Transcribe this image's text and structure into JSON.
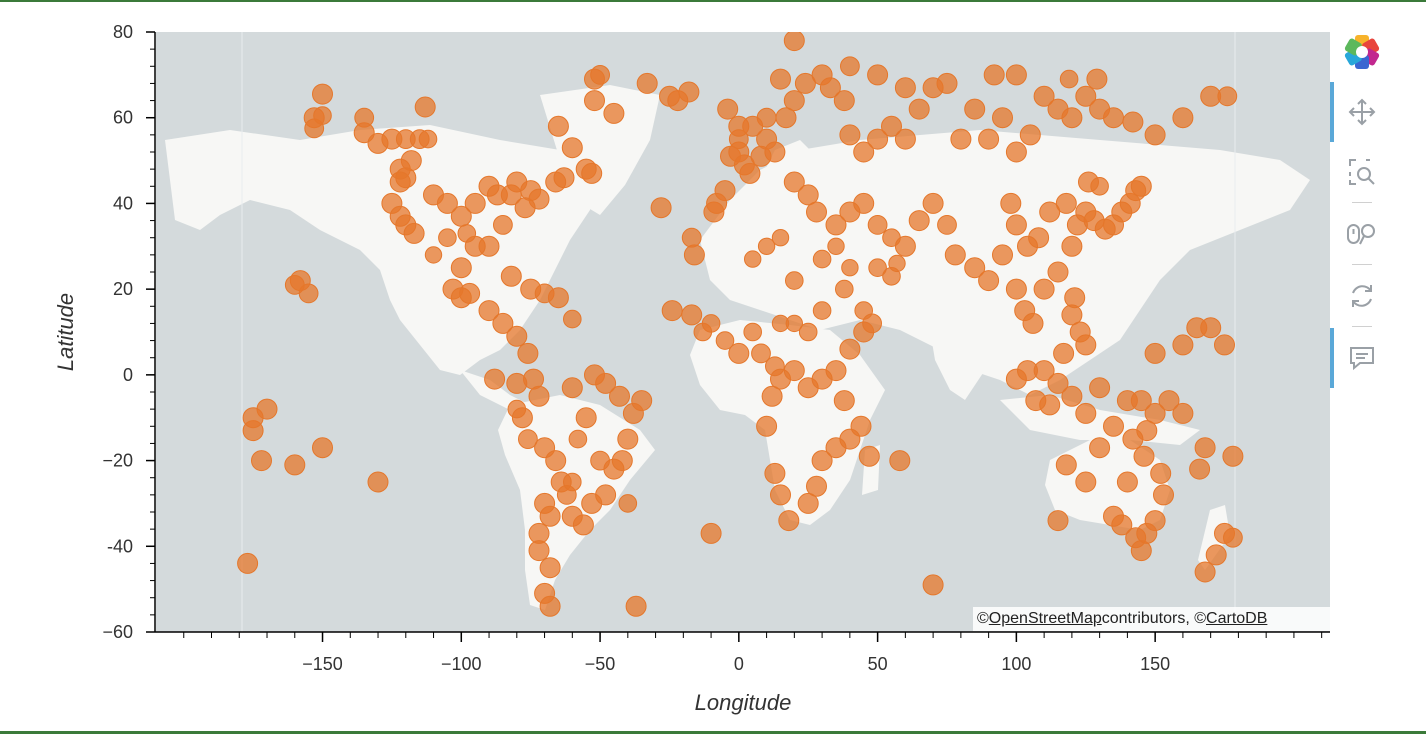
{
  "chart_data": {
    "type": "scatter",
    "xlabel": "Longitude",
    "ylabel": "Latitude",
    "xlim": [
      -210,
      213
    ],
    "ylim": [
      -60,
      80
    ],
    "x_ticks": [
      -150,
      -100,
      -50,
      0,
      50,
      100,
      150
    ],
    "y_ticks": [
      80,
      60,
      40,
      20,
      0,
      -20,
      -40,
      -60
    ],
    "x_tick_labels": [
      "−150",
      "−100",
      "−50",
      "0",
      "50",
      "100",
      "150"
    ],
    "y_tick_labels": [
      "80",
      "60",
      "40",
      "20",
      "0",
      "−20",
      "-40",
      "−60"
    ],
    "marker_color": "#e5772b",
    "points": [
      [
        -150,
        65.5,
        1.0
      ],
      [
        -153,
        60,
        1.0
      ],
      [
        -153,
        57.5,
        0.9
      ],
      [
        -113,
        62.5,
        1.0
      ],
      [
        -135,
        60,
        0.9
      ],
      [
        -135,
        56.5,
        1.0
      ],
      [
        -130,
        54,
        1.0
      ],
      [
        -125,
        55,
        1.0
      ],
      [
        -120,
        55,
        0.9
      ],
      [
        -115,
        55,
        0.9
      ],
      [
        -112,
        55,
        0.8
      ],
      [
        -118,
        50,
        1.0
      ],
      [
        -122,
        48,
        1.0
      ],
      [
        -120,
        46,
        1.0
      ],
      [
        -122,
        45,
        1.0
      ],
      [
        -125,
        40,
        1.0
      ],
      [
        -122,
        37,
        1.0
      ],
      [
        -120,
        35,
        1.0
      ],
      [
        -117,
        33,
        1.0
      ],
      [
        -110,
        42,
        1.0
      ],
      [
        -105,
        40,
        1.0
      ],
      [
        -100,
        37,
        1.0
      ],
      [
        -95,
        40,
        1.0
      ],
      [
        -90,
        44,
        1.0
      ],
      [
        -87,
        42,
        1.0
      ],
      [
        -82,
        42,
        1.0
      ],
      [
        -80,
        45,
        1.0
      ],
      [
        -75,
        43,
        1.0
      ],
      [
        -72,
        41,
        1.0
      ],
      [
        -77,
        39,
        1.0
      ],
      [
        -85,
        35,
        0.9
      ],
      [
        -90,
        30,
        1.0
      ],
      [
        -95,
        30,
        1.0
      ],
      [
        -98,
        33,
        0.8
      ],
      [
        -105,
        32,
        0.8
      ],
      [
        -110,
        28,
        0.7
      ],
      [
        -100,
        25,
        1.0
      ],
      [
        -103,
        20,
        1.0
      ],
      [
        -100,
        18,
        1.0
      ],
      [
        -97,
        19,
        1.0
      ],
      [
        -90,
        15,
        1.0
      ],
      [
        -85,
        12,
        1.0
      ],
      [
        -80,
        9,
        1.0
      ],
      [
        -75,
        20,
        1.0
      ],
      [
        -70,
        19,
        0.9
      ],
      [
        -65,
        18,
        1.0
      ],
      [
        -60,
        13,
        0.8
      ],
      [
        -82,
        23,
        1.0
      ],
      [
        -76,
        5,
        1.0
      ],
      [
        -74,
        -1,
        1.0
      ],
      [
        -72,
        -5,
        1.0
      ],
      [
        -78,
        -10,
        1.0
      ],
      [
        -76,
        -15,
        0.9
      ],
      [
        -70,
        -17,
        1.0
      ],
      [
        -66,
        -20,
        1.0
      ],
      [
        -64,
        -25,
        1.0
      ],
      [
        -62,
        -28,
        0.9
      ],
      [
        -70,
        -30,
        1.0
      ],
      [
        -68,
        -33,
        1.0
      ],
      [
        -72,
        -37,
        1.0
      ],
      [
        -72,
        -41,
        1.0
      ],
      [
        -68,
        -45,
        1.0
      ],
      [
        -70,
        -51,
        1.0
      ],
      [
        -68,
        -54,
        1.0
      ],
      [
        -60,
        -33,
        1.0
      ],
      [
        -56,
        -35,
        1.0
      ],
      [
        -53,
        -30,
        1.0
      ],
      [
        -48,
        -28,
        1.0
      ],
      [
        -45,
        -22,
        1.0
      ],
      [
        -42,
        -20,
        1.0
      ],
      [
        -40,
        -15,
        1.0
      ],
      [
        -38,
        -9,
        1.0
      ],
      [
        -35,
        -6,
        1.0
      ],
      [
        -43,
        -5,
        1.0
      ],
      [
        -48,
        -2,
        1.0
      ],
      [
        -52,
        0,
        1.0
      ],
      [
        -60,
        -3,
        1.0
      ],
      [
        -55,
        -10,
        1.0
      ],
      [
        -50,
        -20,
        0.9
      ],
      [
        -58,
        -15,
        0.8
      ],
      [
        -60,
        -25,
        0.8
      ],
      [
        -37,
        -54,
        1.0
      ],
      [
        -28,
        39,
        1.0
      ],
      [
        -17,
        32,
        0.9
      ],
      [
        -16,
        28,
        1.0
      ],
      [
        -24,
        15,
        1.0
      ],
      [
        -17,
        14,
        1.0
      ],
      [
        -13,
        10,
        0.8
      ],
      [
        -10,
        -37,
        1.0
      ],
      [
        -5,
        43,
        1.0
      ],
      [
        -9,
        38,
        1.0
      ],
      [
        -8,
        40,
        1.0
      ],
      [
        -3,
        51,
        1.0
      ],
      [
        0,
        52,
        1.0
      ],
      [
        2,
        49,
        1.0
      ],
      [
        4,
        47,
        1.0
      ],
      [
        8,
        51,
        1.0
      ],
      [
        10,
        55,
        1.0
      ],
      [
        13,
        52,
        1.0
      ],
      [
        17,
        60,
        1.0
      ],
      [
        20,
        64,
        1.0
      ],
      [
        24,
        68,
        1.0
      ],
      [
        30,
        70,
        1.0
      ],
      [
        33,
        67,
        1.0
      ],
      [
        38,
        64,
        1.0
      ],
      [
        40,
        56,
        1.0
      ],
      [
        45,
        52,
        1.0
      ],
      [
        50,
        55,
        1.0
      ],
      [
        55,
        58,
        1.0
      ],
      [
        60,
        55,
        1.0
      ],
      [
        60,
        67,
        1.0
      ],
      [
        65,
        62,
        1.0
      ],
      [
        70,
        67,
        1.0
      ],
      [
        80,
        55,
        1.0
      ],
      [
        85,
        62,
        1.0
      ],
      [
        90,
        55,
        1.0
      ],
      [
        95,
        60,
        1.0
      ],
      [
        100,
        52,
        1.0
      ],
      [
        105,
        56,
        1.0
      ],
      [
        110,
        65,
        1.0
      ],
      [
        115,
        62,
        1.0
      ],
      [
        120,
        60,
        1.0
      ],
      [
        125,
        65,
        1.0
      ],
      [
        130,
        62,
        1.0
      ],
      [
        135,
        60,
        1.0
      ],
      [
        142,
        59,
        1.0
      ],
      [
        150,
        56,
        1.0
      ],
      [
        160,
        60,
        1.0
      ],
      [
        170,
        65,
        1.0
      ],
      [
        176,
        65,
        0.9
      ],
      [
        129,
        69,
        1.0
      ],
      [
        119,
        69,
        0.8
      ],
      [
        100,
        70,
        1.0
      ],
      [
        92,
        70,
        1.0
      ],
      [
        75,
        68,
        1.0
      ],
      [
        50,
        70,
        1.0
      ],
      [
        40,
        72,
        0.9
      ],
      [
        20,
        78,
        1.0
      ],
      [
        15,
        69,
        1.0
      ],
      [
        10,
        60,
        0.9
      ],
      [
        5,
        58,
        1.0
      ],
      [
        0,
        55,
        0.9
      ],
      [
        20,
        45,
        1.0
      ],
      [
        25,
        42,
        1.0
      ],
      [
        28,
        38,
        1.0
      ],
      [
        35,
        35,
        1.0
      ],
      [
        40,
        38,
        1.0
      ],
      [
        45,
        40,
        1.0
      ],
      [
        50,
        35,
        0.9
      ],
      [
        55,
        32,
        0.8
      ],
      [
        60,
        30,
        1.0
      ],
      [
        65,
        36,
        1.0
      ],
      [
        70,
        40,
        1.0
      ],
      [
        75,
        35,
        0.9
      ],
      [
        78,
        28,
        1.0
      ],
      [
        85,
        25,
        1.0
      ],
      [
        90,
        22,
        1.0
      ],
      [
        95,
        28,
        1.0
      ],
      [
        100,
        20,
        1.0
      ],
      [
        103,
        15,
        1.0
      ],
      [
        106,
        12,
        1.0
      ],
      [
        110,
        20,
        1.0
      ],
      [
        115,
        24,
        1.0
      ],
      [
        120,
        30,
        1.0
      ],
      [
        122,
        35,
        1.0
      ],
      [
        125,
        38,
        1.0
      ],
      [
        128,
        36,
        1.0
      ],
      [
        132,
        34,
        1.0
      ],
      [
        135,
        35,
        1.0
      ],
      [
        138,
        38,
        1.0
      ],
      [
        141,
        40,
        1.0
      ],
      [
        143,
        43,
        1.0
      ],
      [
        145,
        44,
        1.0
      ],
      [
        130,
        44,
        0.8
      ],
      [
        126,
        45,
        1.0
      ],
      [
        118,
        40,
        1.0
      ],
      [
        112,
        38,
        1.0
      ],
      [
        108,
        32,
        1.0
      ],
      [
        104,
        30,
        1.0
      ],
      [
        100,
        35,
        1.0
      ],
      [
        98,
        40,
        1.0
      ],
      [
        120,
        14,
        1.0
      ],
      [
        123,
        10,
        1.0
      ],
      [
        125,
        7,
        1.0
      ],
      [
        121,
        18,
        1.0
      ],
      [
        117,
        5,
        1.0
      ],
      [
        112,
        -7,
        1.0
      ],
      [
        107,
        -6,
        1.0
      ],
      [
        100,
        -1,
        1.0
      ],
      [
        104,
        1,
        1.0
      ],
      [
        110,
        1,
        1.0
      ],
      [
        115,
        -2,
        1.0
      ],
      [
        120,
        -5,
        1.0
      ],
      [
        125,
        -9,
        1.0
      ],
      [
        130,
        -3,
        1.0
      ],
      [
        140,
        -6,
        1.0
      ],
      [
        145,
        -6,
        1.0
      ],
      [
        150,
        -9,
        1.0
      ],
      [
        147,
        -13,
        1.0
      ],
      [
        142,
        -15,
        1.0
      ],
      [
        135,
        -12,
        1.0
      ],
      [
        130,
        -17,
        1.0
      ],
      [
        125,
        -25,
        1.0
      ],
      [
        118,
        -21,
        1.0
      ],
      [
        115,
        -34,
        1.0
      ],
      [
        135,
        -33,
        1.0
      ],
      [
        138,
        -35,
        1.0
      ],
      [
        143,
        -38,
        1.0
      ],
      [
        145,
        -41,
        1.0
      ],
      [
        147,
        -37,
        1.0
      ],
      [
        150,
        -34,
        1.0
      ],
      [
        153,
        -28,
        1.0
      ],
      [
        152,
        -23,
        1.0
      ],
      [
        146,
        -19,
        1.0
      ],
      [
        140,
        -25,
        1.0
      ],
      [
        168,
        -46,
        1.0
      ],
      [
        172,
        -42,
        1.0
      ],
      [
        175,
        -37,
        1.0
      ],
      [
        178,
        -38,
        0.9
      ],
      [
        178,
        -19,
        1.0
      ],
      [
        166,
        -22,
        1.0
      ],
      [
        168,
        -17,
        1.0
      ],
      [
        160,
        -9,
        1.0
      ],
      [
        155,
        -6,
        1.0
      ],
      [
        150,
        5,
        1.0
      ],
      [
        160,
        7,
        1.0
      ],
      [
        165,
        11,
        1.0
      ],
      [
        170,
        11,
        1.0
      ],
      [
        175,
        7,
        1.0
      ],
      [
        -175,
        -13,
        1.0
      ],
      [
        -172,
        -20,
        1.0
      ],
      [
        -170,
        -8,
        1.0
      ],
      [
        -160,
        -21,
        1.0
      ],
      [
        -150,
        -17,
        1.0
      ],
      [
        -130,
        -25,
        1.0
      ],
      [
        -177,
        -44,
        1.0
      ],
      [
        -158,
        22,
        1.0
      ],
      [
        -155,
        19,
        0.9
      ],
      [
        -150,
        60.5,
        0.8
      ],
      [
        70,
        -49,
        1.0
      ],
      [
        58,
        -20,
        1.0
      ],
      [
        47,
        -19,
        1.0
      ],
      [
        44,
        -12,
        1.0
      ],
      [
        40,
        -15,
        1.0
      ],
      [
        35,
        -17,
        1.0
      ],
      [
        30,
        -20,
        1.0
      ],
      [
        28,
        -26,
        1.0
      ],
      [
        25,
        -30,
        1.0
      ],
      [
        18,
        -34,
        1.0
      ],
      [
        15,
        -28,
        1.0
      ],
      [
        13,
        -23,
        1.0
      ],
      [
        10,
        -12,
        1.0
      ],
      [
        12,
        -5,
        1.0
      ],
      [
        15,
        -1,
        1.0
      ],
      [
        20,
        1,
        1.0
      ],
      [
        25,
        -3,
        1.0
      ],
      [
        30,
        -1,
        1.0
      ],
      [
        35,
        1,
        1.0
      ],
      [
        38,
        -6,
        1.0
      ],
      [
        40,
        6,
        1.0
      ],
      [
        45,
        10,
        1.0
      ],
      [
        48,
        12,
        0.9
      ],
      [
        30,
        15,
        0.8
      ],
      [
        25,
        10,
        0.8
      ],
      [
        20,
        12,
        0.7
      ],
      [
        15,
        12,
        0.7
      ],
      [
        5,
        10,
        0.8
      ],
      [
        0,
        5,
        1.0
      ],
      [
        -5,
        8,
        0.8
      ],
      [
        -10,
        12,
        0.8
      ],
      [
        8,
        5,
        0.9
      ],
      [
        13,
        2,
        0.9
      ],
      [
        5,
        27,
        0.7
      ],
      [
        10,
        30,
        0.7
      ],
      [
        15,
        32,
        0.7
      ],
      [
        20,
        22,
        0.8
      ],
      [
        30,
        27,
        0.8
      ],
      [
        35,
        30,
        0.7
      ],
      [
        38,
        20,
        0.8
      ],
      [
        40,
        25,
        0.7
      ],
      [
        45,
        15,
        0.8
      ],
      [
        50,
        25,
        0.8
      ],
      [
        55,
        23,
        0.8
      ],
      [
        57,
        26,
        0.7
      ],
      [
        -175,
        -10,
        1.0
      ],
      [
        -160,
        21,
        0.9
      ],
      [
        -66,
        45,
        1.0
      ],
      [
        -63,
        46,
        1.0
      ],
      [
        -55,
        48,
        1.0
      ],
      [
        -53,
        47,
        1.0
      ],
      [
        -60,
        53,
        1.0
      ],
      [
        -65,
        58,
        1.0
      ],
      [
        -52,
        64,
        1.0
      ],
      [
        -45,
        61,
        1.0
      ],
      [
        -52,
        69,
        1.0
      ],
      [
        -50,
        70,
        0.9
      ],
      [
        -25,
        65,
        1.0
      ],
      [
        -18,
        66,
        1.0
      ],
      [
        -22,
        64,
        1.0
      ],
      [
        -33,
        68,
        1.0
      ],
      [
        -4,
        62,
        1.0
      ],
      [
        0,
        58,
        1.0
      ],
      [
        -40,
        -30,
        0.8
      ],
      [
        -80,
        -2,
        1.0
      ],
      [
        -80,
        -8,
        0.8
      ],
      [
        -88,
        -1,
        1.0
      ]
    ]
  },
  "attribution": {
    "prefix": "© ",
    "osm": "OpenStreetMap",
    "middle": " contributors, © ",
    "carto": "CartoDB"
  },
  "toolbar": {
    "logo_icon": "bokeh-logo-icon",
    "tools": [
      "pan-icon",
      "box-zoom-icon",
      "wheel-zoom-icon",
      "reset-icon",
      "hover-icon"
    ]
  }
}
